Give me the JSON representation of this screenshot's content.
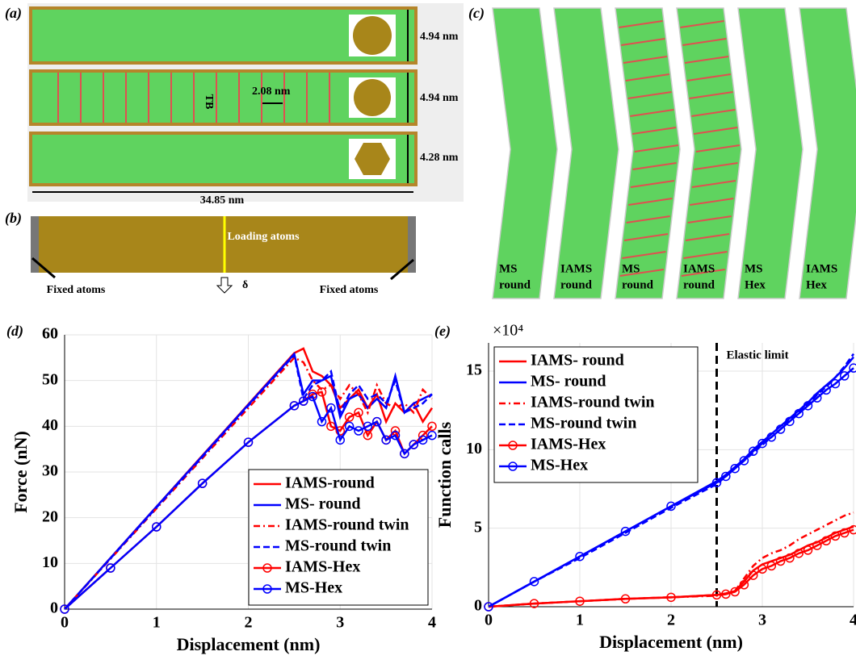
{
  "panels": {
    "a": {
      "letter": "(a)",
      "dims": [
        "4.94 nm",
        "4.94 nm",
        "4.28 nm"
      ],
      "spacing": "2.08 nm",
      "tb": "TB",
      "length": "34.85 nm"
    },
    "b": {
      "letter": "(b)",
      "loading": "Loading atoms",
      "fixed_left": "Fixed atoms",
      "fixed_right": "Fixed atoms",
      "delta": "δ"
    },
    "c": {
      "letter": "(c)",
      "labels": [
        [
          "MS",
          "round"
        ],
        [
          "IAMS",
          "round"
        ],
        [
          "MS",
          "round"
        ],
        [
          "IAMS",
          "round"
        ],
        [
          "MS",
          "Hex"
        ],
        [
          "IAMS",
          "Hex"
        ]
      ]
    },
    "d": {
      "letter": "(d)"
    },
    "e": {
      "letter": "(e)"
    }
  },
  "chart_data": [
    {
      "type": "line",
      "xlabel": "Displacement (nm)",
      "ylabel": "Force (nN)",
      "x": [
        0,
        0.5,
        1,
        1.5,
        2,
        2.5,
        2.6,
        2.7,
        2.8,
        2.9,
        3.0,
        3.1,
        3.2,
        3.3,
        3.4,
        3.5,
        3.6,
        3.7,
        3.8,
        3.9,
        4.0
      ],
      "xlim": [
        0,
        4
      ],
      "xticks": [
        0,
        1,
        2,
        3,
        4
      ],
      "ylim": [
        0,
        60
      ],
      "yticks": [
        0,
        10,
        20,
        30,
        40,
        50,
        60
      ],
      "grid": true,
      "legend": "lower right",
      "series": [
        {
          "name": "IAMS-round",
          "color": "#ff0000",
          "linestyle": "solid",
          "values": [
            0,
            11.2,
            22.4,
            33.6,
            44.8,
            56,
            57,
            52,
            51,
            49,
            44,
            46,
            48,
            44,
            47,
            41,
            45,
            43,
            45,
            41,
            44
          ]
        },
        {
          "name": "MS- round",
          "color": "#0000ff",
          "linestyle": "solid",
          "values": [
            0,
            11.2,
            22.4,
            33.5,
            44.7,
            55.8,
            47,
            50,
            50,
            51,
            42,
            46,
            47,
            44,
            46,
            44,
            51,
            43,
            45,
            46,
            47
          ]
        },
        {
          "name": "IAMS-round twin",
          "color": "#ff0000",
          "linestyle": "dashdot",
          "values": [
            0,
            11,
            22,
            33,
            44,
            55,
            54,
            50,
            48,
            49,
            46,
            49,
            47,
            43,
            49,
            45,
            44,
            45,
            43,
            48,
            46
          ]
        },
        {
          "name": "MS-round twin",
          "color": "#0000ff",
          "linestyle": "dashed",
          "values": [
            0,
            11.1,
            22.2,
            33.3,
            44.5,
            55.6,
            46,
            49,
            50,
            52,
            43,
            47,
            49,
            46,
            47,
            45,
            50,
            43,
            44,
            45,
            47
          ]
        },
        {
          "name": "IAMS-Hex",
          "color": "#ff0000",
          "linestyle": "solid",
          "marker": "o",
          "values": [
            0,
            9,
            18,
            27.5,
            36.5,
            44.5,
            45.5,
            47,
            47.5,
            40,
            39,
            42,
            43,
            38,
            41,
            37,
            39,
            34,
            36,
            38,
            40
          ]
        },
        {
          "name": "MS-Hex",
          "color": "#0000ff",
          "linestyle": "solid",
          "marker": "o",
          "values": [
            0,
            9,
            18,
            27.5,
            36.5,
            44.5,
            45.5,
            46.5,
            41,
            44,
            37,
            40,
            39,
            40,
            41,
            37,
            38,
            34,
            36,
            37,
            38
          ]
        }
      ]
    },
    {
      "type": "line",
      "xlabel": "Displacement (nm)",
      "ylabel": "Function calls",
      "y_scale_label": "×10⁴",
      "x": [
        0,
        0.5,
        1,
        1.5,
        2,
        2.5,
        2.6,
        2.7,
        2.8,
        2.9,
        3.0,
        3.1,
        3.2,
        3.3,
        3.4,
        3.5,
        3.6,
        3.7,
        3.8,
        3.9,
        4.0
      ],
      "xlim": [
        0,
        4
      ],
      "xticks": [
        0,
        1,
        2,
        3,
        4
      ],
      "ylim": [
        0,
        16.8
      ],
      "yticks": [
        0,
        5,
        10,
        15
      ],
      "grid": true,
      "legend": "upper left",
      "vline_x": 2.5,
      "vline_label": "Elastic limit",
      "series": [
        {
          "name": "IAMS- round",
          "color": "#ff0000",
          "linestyle": "solid",
          "values": [
            0,
            0.2,
            0.35,
            0.5,
            0.6,
            0.75,
            0.85,
            1.0,
            1.6,
            2.3,
            2.7,
            2.9,
            3.1,
            3.3,
            3.6,
            3.9,
            4.1,
            4.4,
            4.7,
            4.9,
            5.1
          ]
        },
        {
          "name": "MS- round",
          "color": "#0000ff",
          "linestyle": "solid",
          "values": [
            0,
            1.6,
            3.2,
            4.8,
            6.4,
            8.0,
            8.4,
            8.9,
            9.4,
            10.0,
            10.5,
            11.0,
            11.5,
            12.0,
            12.5,
            13.0,
            13.6,
            14.1,
            14.6,
            15.2,
            15.9
          ]
        },
        {
          "name": "IAMS-round twin",
          "color": "#ff0000",
          "linestyle": "dashdot",
          "values": [
            0,
            0.2,
            0.35,
            0.5,
            0.6,
            0.7,
            0.8,
            1.0,
            1.8,
            2.6,
            3.1,
            3.4,
            3.6,
            3.9,
            4.3,
            4.6,
            4.9,
            5.2,
            5.5,
            5.8,
            6.0
          ]
        },
        {
          "name": "MS-round twin",
          "color": "#0000ff",
          "linestyle": "dashed",
          "values": [
            0,
            1.6,
            3.1,
            4.7,
            6.3,
            7.8,
            8.3,
            8.8,
            9.3,
            9.8,
            10.3,
            10.8,
            11.3,
            11.9,
            12.4,
            12.9,
            13.5,
            14.0,
            14.6,
            15.3,
            16.1
          ]
        },
        {
          "name": "IAMS-Hex",
          "color": "#ff0000",
          "linestyle": "solid",
          "marker": "o",
          "values": [
            0,
            0.2,
            0.35,
            0.5,
            0.6,
            0.75,
            0.8,
            0.95,
            1.4,
            2.0,
            2.4,
            2.6,
            2.9,
            3.1,
            3.4,
            3.6,
            3.9,
            4.2,
            4.5,
            4.7,
            4.9
          ]
        },
        {
          "name": "MS-Hex",
          "color": "#0000ff",
          "linestyle": "solid",
          "marker": "o",
          "values": [
            0,
            1.6,
            3.2,
            4.8,
            6.4,
            7.9,
            8.3,
            8.8,
            9.3,
            9.9,
            10.4,
            10.8,
            11.3,
            11.8,
            12.3,
            12.8,
            13.3,
            13.8,
            14.2,
            14.7,
            15.2
          ]
        }
      ]
    }
  ]
}
